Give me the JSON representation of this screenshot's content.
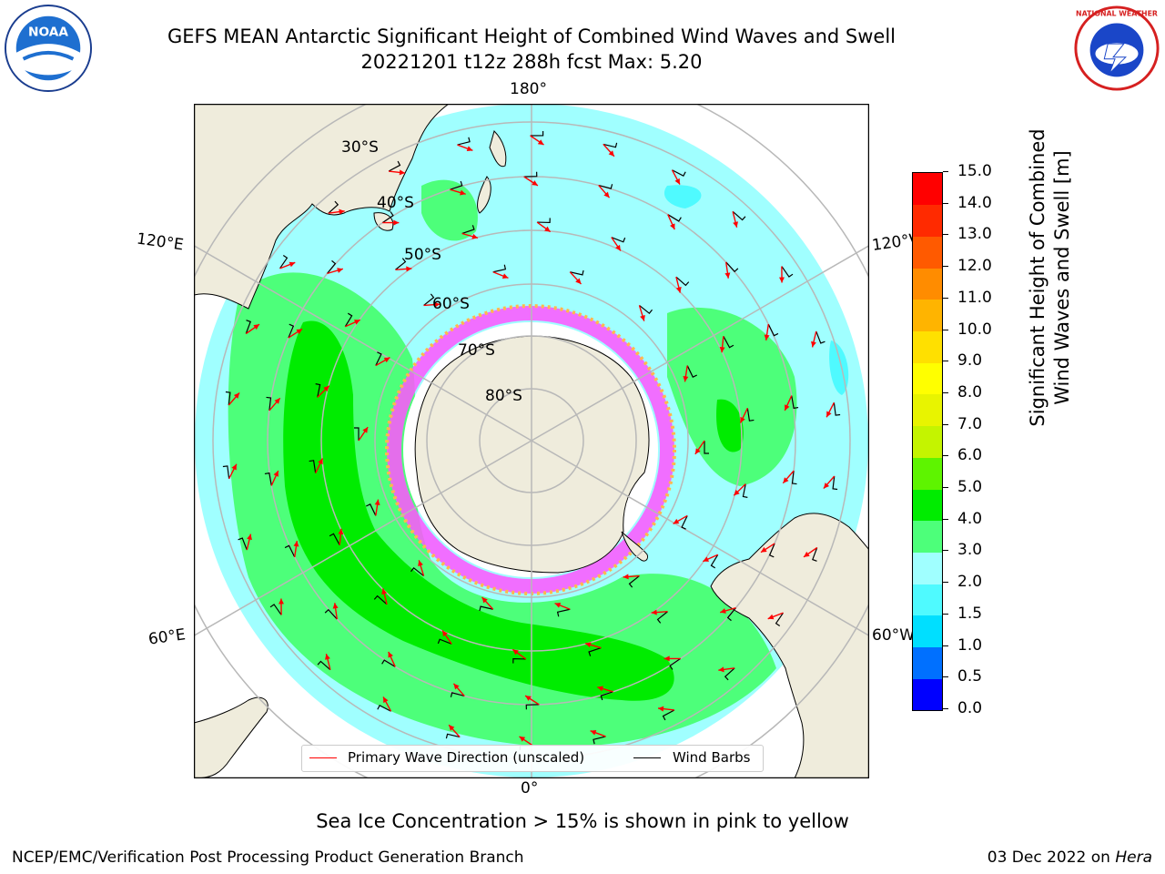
{
  "title": {
    "line1": "GEFS MEAN Antarctic Significant Height of Combined Wind Waves and Swell",
    "line2": "20221201 t12z 288h fcst   Max: 5.20"
  },
  "logos": {
    "left": {
      "icon": "noaa-logo",
      "text": "NOAA"
    },
    "right": {
      "icon": "nws-logo",
      "text": "NATIONAL WEATHER SERVICE"
    }
  },
  "map": {
    "projection": "south-polar-stereographic",
    "lon_labels": {
      "top": "180°",
      "bottom": "0°",
      "upper_left": "120°E",
      "upper_right": "120°W",
      "lower_left": "60°E",
      "lower_right": "60°W"
    },
    "lat_labels": [
      "30°S",
      "40°S",
      "50°S",
      "60°S",
      "70°S",
      "80°S"
    ],
    "legend": {
      "primary_wave": "Primary Wave Direction (unscaled)",
      "wind_barbs": "Wind Barbs"
    },
    "colors": {
      "land": "#efecdc",
      "ice_free": "#ffffff",
      "arrow": "#ff0000",
      "barb": "#000000",
      "graticule": "#b8b8b8"
    }
  },
  "colorbar": {
    "label_line1": "Significant Height of Combined",
    "label_line2": "Wind Waves and Swell [m]",
    "ticks": [
      "0.0",
      "0.5",
      "1.0",
      "1.5",
      "2.0",
      "3.0",
      "4.0",
      "5.0",
      "6.0",
      "7.0",
      "8.0",
      "9.0",
      "10.0",
      "11.0",
      "12.0",
      "13.0",
      "14.0",
      "15.0"
    ],
    "colors": [
      "#0000ff",
      "#0070ff",
      "#00dfff",
      "#4ffaff",
      "#a0ffff",
      "#4dff7a",
      "#00ec00",
      "#5ef400",
      "#c4f400",
      "#e8f400",
      "#ffff00",
      "#ffe000",
      "#ffb400",
      "#ff8c00",
      "#ff5a00",
      "#ff2a00",
      "#ff0000"
    ]
  },
  "note": "Sea Ice Concentration > 15% is shown in pink to yellow",
  "footer": {
    "left": "NCEP/EMC/Verification Post Processing Product Generation Branch",
    "right_prefix": "03 Dec 2022 on ",
    "right_host": "Hera"
  }
}
